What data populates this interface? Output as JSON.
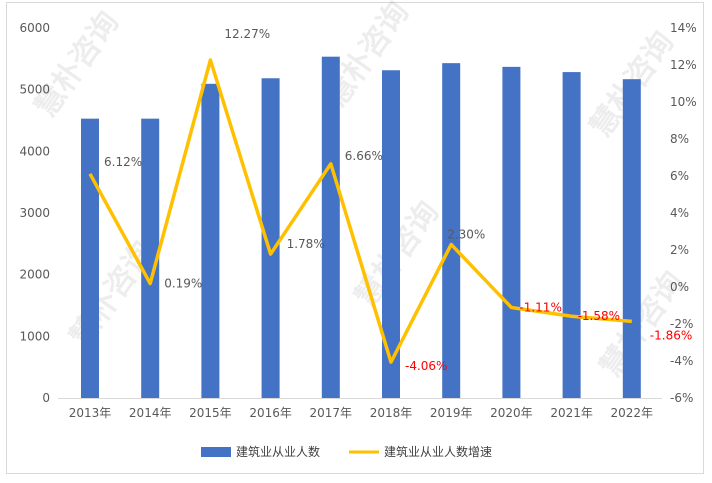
{
  "chart_data": {
    "type": "bar+line",
    "categories": [
      "2013年",
      "2014年",
      "2015年",
      "2016年",
      "2017年",
      "2018年",
      "2019年",
      "2020年",
      "2021年",
      "2022年"
    ],
    "series": [
      {
        "name": "建筑业从业人数",
        "type": "bar",
        "axis": "left",
        "color": "#4472c4",
        "values": [
          4530,
          4530,
          5095,
          5185,
          5535,
          5315,
          5430,
          5370,
          5285,
          5170
        ]
      },
      {
        "name": "建筑业从业人数增速",
        "type": "line",
        "axis": "right",
        "color": "#ffc000",
        "values": [
          6.12,
          0.19,
          12.27,
          1.78,
          6.66,
          -4.06,
          2.3,
          -1.11,
          -1.58,
          -1.86
        ],
        "labels": [
          "6.12%",
          "0.19%",
          "12.27%",
          "1.78%",
          "6.66%",
          "-4.06%",
          "2.30%",
          "-1.11%",
          "-1.58%",
          "-1.86%"
        ]
      }
    ],
    "y_left": {
      "ylim": [
        0,
        6000
      ],
      "ticks": [
        "0",
        "1000",
        "2000",
        "3000",
        "4000",
        "5000",
        "6000"
      ]
    },
    "y_right": {
      "ylim": [
        -6,
        14
      ],
      "ticks": [
        "-6%",
        "-4%",
        "-2%",
        "0%",
        "2%",
        "4%",
        "6%",
        "8%",
        "10%",
        "12%",
        "14%"
      ]
    },
    "legend": {
      "position": "bottom"
    },
    "grid": false,
    "negative_label_color": "#ff0000",
    "label_color": "#595959"
  },
  "watermark": "慧朴咨询"
}
